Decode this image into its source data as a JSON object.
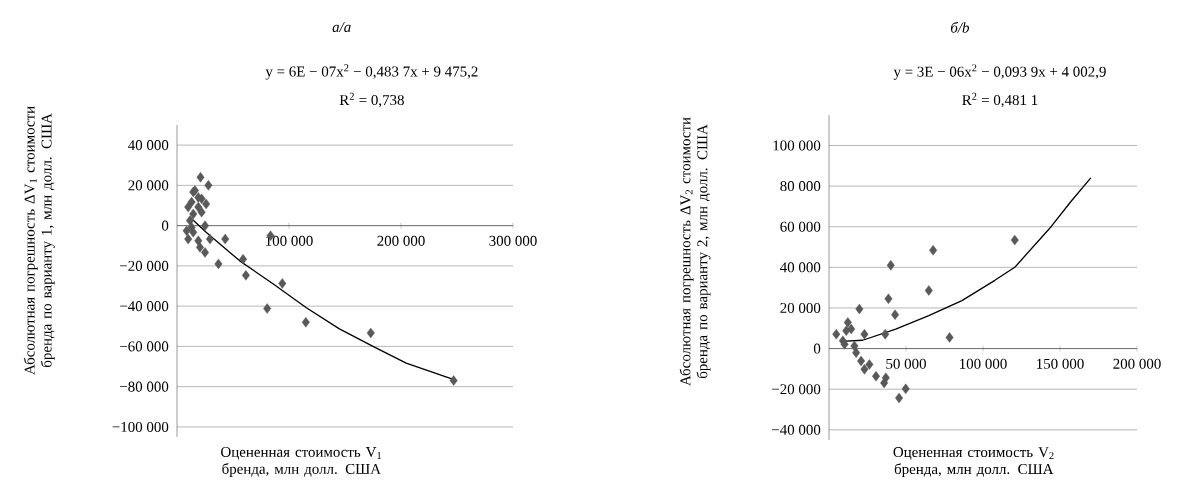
{
  "chart_data": [
    {
      "type": "scatter",
      "title": "а/a",
      "annotations": [
        "y = 6E − 07x$^{2}$ − 0,483 7x + 9 475,2",
        "R$^{2}$ = 0,738"
      ],
      "xlabel": "Оцененная стоимость V$_{1}$ бренда, млн долл. США",
      "ylabel": "Абсолютная погрешность ΔV$_{1}$ стоимости бренда по варианту 1, млн долл. США",
      "xlim": [
        0,
        300000
      ],
      "ylim": [
        -105000,
        50000
      ],
      "xticks": [
        {
          "value": 100000,
          "label": "100 000"
        },
        {
          "value": 200000,
          "label": "200 000"
        },
        {
          "value": 300000,
          "label": "300 000"
        }
      ],
      "yticks": [
        {
          "value": -100000,
          "label": "−100 000"
        },
        {
          "value": -80000,
          "label": "−80 000"
        },
        {
          "value": -60000,
          "label": "−60 000"
        },
        {
          "value": -40000,
          "label": "−40 000"
        },
        {
          "value": -20000,
          "label": "−20 000"
        },
        0,
        {
          "value": 20000,
          "label": "20 000"
        },
        {
          "value": 40000,
          "label": "40 000"
        }
      ],
      "grid": "y",
      "series": [
        {
          "color": "#595959",
          "marker": "diamond",
          "x": [
            21000,
            28000,
            14500,
            16000,
            19000,
            22000,
            26000,
            10000,
            13000,
            19000,
            14500,
            22000,
            11600,
            25000,
            13000,
            8600,
            14500,
            10000,
            19000,
            29400,
            20500,
            25000,
            43000,
            37000,
            59000,
            61500,
            83500,
            94000,
            80500,
            115000,
            173000,
            247000
          ],
          "values": [
            24000,
            20000,
            16700,
            17500,
            14000,
            13300,
            10800,
            9200,
            11700,
            9200,
            5800,
            6700,
            2500,
            0,
            -800,
            -2500,
            -3300,
            -6700,
            -7500,
            -6700,
            -10800,
            -13300,
            -6700,
            -19000,
            -16700,
            -24700,
            -5000,
            -28700,
            -41200,
            -48000,
            -53300,
            -77000
          ]
        },
        {
          "type": "line",
          "color": "#000000",
          "marker": "none",
          "x": [
            11600,
            26000,
            56000,
            86000,
            115500,
            145000,
            175000,
            204600,
            246000
          ],
          "values": [
            4200,
            -3300,
            -17500,
            -29000,
            -40800,
            -51300,
            -60000,
            -68300,
            -76300
          ]
        }
      ]
    },
    {
      "type": "scatter",
      "title": "б/b",
      "annotations": [
        "y = 3E − 06x$^{2}$ − 0,093 9x + 4 002,9",
        "R$^{2}$ = 0,481 1"
      ],
      "xlabel": "Оцененная стоимость V$_{2}$ бренда, млн долл. США",
      "ylabel": "Абсолютная погрешность ΔV$_{2}$ стоимости бренда по варианту 2, млн долл. США",
      "xlim": [
        0,
        200000
      ],
      "ylim": [
        -45000,
        115000
      ],
      "xticks": [
        {
          "value": 50000,
          "label": "50 000"
        },
        {
          "value": 100000,
          "label": "100 000"
        },
        {
          "value": 150000,
          "label": "150 000"
        },
        {
          "value": 200000,
          "label": "200 000"
        }
      ],
      "yticks": [
        {
          "value": -40000,
          "label": "−40 000"
        },
        {
          "value": -20000,
          "label": "−20 000"
        },
        0,
        {
          "value": 20000,
          "label": "20 000"
        },
        {
          "value": 40000,
          "label": "40 000"
        },
        {
          "value": 60000,
          "label": "60 000"
        },
        {
          "value": 80000,
          "label": "80 000"
        },
        {
          "value": 100000,
          "label": "100 000"
        }
      ],
      "grid": "y",
      "series": [
        {
          "color": "#595959",
          "marker": "diamond",
          "x": [
            4700,
            9000,
            12200,
            14400,
            19700,
            11200,
            10100,
            16500,
            23000,
            17600,
            20800,
            23000,
            26200,
            30500,
            35800,
            36900,
            36500,
            38600,
            40100,
            42900,
            45500,
            49800,
            64800,
            67600,
            78300,
            120600
          ],
          "values": [
            7100,
            3800,
            12900,
            9600,
            19500,
            8800,
            2100,
            1300,
            7100,
            -2000,
            -6100,
            -10200,
            -7800,
            -13600,
            -16900,
            -14400,
            7100,
            24500,
            41000,
            16700,
            -24300,
            -19800,
            28600,
            48400,
            5500,
            53400
          ]
        },
        {
          "type": "line",
          "color": "#000000",
          "marker": "none",
          "x": [
            7900,
            21900,
            43300,
            64800,
            86300,
            107700,
            120600,
            144200,
            157100,
            170000
          ],
          "values": [
            3500,
            4100,
            9600,
            16200,
            23600,
            33600,
            40000,
            60000,
            72400,
            84000
          ]
        }
      ]
    }
  ]
}
